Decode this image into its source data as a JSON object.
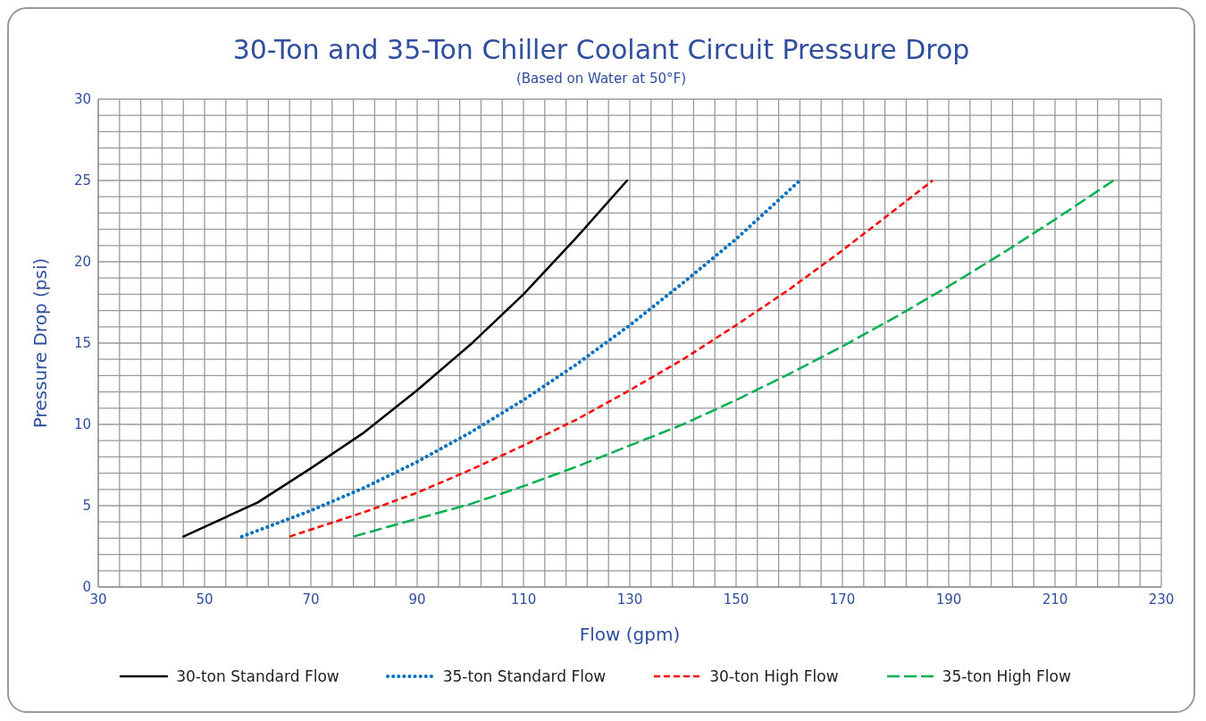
{
  "chart_data": {
    "type": "line",
    "title": "30-Ton and 35-Ton Chiller Coolant Circuit Pressure Drop",
    "subtitle": "(Based on Water at 50°F)",
    "xlabel": "Flow (gpm)",
    "ylabel": "Pressure Drop (psi)",
    "xlim": [
      30,
      230
    ],
    "xticks": [
      30,
      {
        "value": 34,
        "label": null
      },
      {
        "value": 38,
        "label": null
      },
      {
        "value": 42,
        "label": null
      },
      {
        "value": 46,
        "label": null
      },
      50,
      {
        "value": 54,
        "label": null
      },
      {
        "value": 58,
        "label": null
      },
      {
        "value": 62,
        "label": null
      },
      {
        "value": 66,
        "label": null
      },
      70,
      {
        "value": 74,
        "label": null
      },
      {
        "value": 78,
        "label": null
      },
      {
        "value": 82,
        "label": null
      },
      {
        "value": 86,
        "label": null
      },
      90,
      {
        "value": 94,
        "label": null
      },
      {
        "value": 98,
        "label": null
      },
      {
        "value": 102,
        "label": null
      },
      {
        "value": 106,
        "label": null
      },
      110,
      {
        "value": 114,
        "label": null
      },
      {
        "value": 118,
        "label": null
      },
      {
        "value": 122,
        "label": null
      },
      {
        "value": 126,
        "label": null
      },
      130,
      {
        "value": 134,
        "label": null
      },
      {
        "value": 138,
        "label": null
      },
      {
        "value": 142,
        "label": null
      },
      {
        "value": 146,
        "label": null
      },
      150,
      {
        "value": 154,
        "label": null
      },
      {
        "value": 158,
        "label": null
      },
      {
        "value": 162,
        "label": null
      },
      {
        "value": 166,
        "label": null
      },
      170,
      {
        "value": 174,
        "label": null
      },
      {
        "value": 178,
        "label": null
      },
      {
        "value": 182,
        "label": null
      },
      {
        "value": 186,
        "label": null
      },
      190,
      {
        "value": 194,
        "label": null
      },
      {
        "value": 198,
        "label": null
      },
      {
        "value": 202,
        "label": null
      },
      {
        "value": 206,
        "label": null
      },
      210,
      {
        "value": 214,
        "label": null
      },
      {
        "value": 218,
        "label": null
      },
      {
        "value": 222,
        "label": null
      },
      {
        "value": 226,
        "label": null
      },
      230
    ],
    "ylim": [
      0,
      30
    ],
    "yticks": [
      0,
      {
        "value": 1,
        "label": null
      },
      {
        "value": 2,
        "label": null
      },
      {
        "value": 3,
        "label": null
      },
      {
        "value": 4,
        "label": null
      },
      5,
      {
        "value": 6,
        "label": null
      },
      {
        "value": 7,
        "label": null
      },
      {
        "value": 8,
        "label": null
      },
      {
        "value": 9,
        "label": null
      },
      10,
      {
        "value": 11,
        "label": null
      },
      {
        "value": 12,
        "label": null
      },
      {
        "value": 13,
        "label": null
      },
      {
        "value": 14,
        "label": null
      },
      15,
      {
        "value": 16,
        "label": null
      },
      {
        "value": 17,
        "label": null
      },
      {
        "value": 18,
        "label": null
      },
      {
        "value": 19,
        "label": null
      },
      20,
      {
        "value": 21,
        "label": null
      },
      {
        "value": 22,
        "label": null
      },
      {
        "value": 23,
        "label": null
      },
      {
        "value": 24,
        "label": null
      },
      25,
      {
        "value": 26,
        "label": null
      },
      {
        "value": 27,
        "label": null
      },
      {
        "value": 28,
        "label": null
      },
      {
        "value": 29,
        "label": null
      },
      30
    ],
    "grid": true,
    "legend": "bottom",
    "series": [
      {
        "name": "30-ton Standard Flow",
        "color": "#000000",
        "line_style": "solid",
        "x": [
          46,
          60,
          70,
          80,
          90,
          100,
          110,
          120,
          129.5
        ],
        "values": [
          3.1,
          5.2,
          7.3,
          9.5,
          12.1,
          14.9,
          18,
          21.5,
          25
        ]
      },
      {
        "name": "35-ton Standard Flow",
        "color": "#0070c0",
        "line_style": "dotted",
        "x": [
          57,
          70,
          80,
          90,
          100,
          110,
          120,
          130,
          140,
          150,
          162
        ],
        "values": [
          3.1,
          4.7,
          6.1,
          7.7,
          9.5,
          11.5,
          13.7,
          16.1,
          18.7,
          21.4,
          25
        ]
      },
      {
        "name": "30-ton High Flow",
        "color": "#ff0000",
        "line_style": "dashed",
        "x": [
          66,
          80,
          90,
          100,
          110,
          120,
          130,
          140,
          150,
          160,
          170,
          187
        ],
        "values": [
          3.1,
          4.6,
          5.8,
          7.2,
          8.7,
          10.3,
          12.1,
          14,
          16.1,
          18.3,
          20.7,
          25
        ]
      },
      {
        "name": "35-ton High Flow",
        "color": "#00b050",
        "line_style": "longdash",
        "x": [
          78,
          90,
          100,
          110,
          120,
          130,
          140,
          150,
          160,
          170,
          180,
          190,
          200,
          210,
          221
        ],
        "values": [
          3.1,
          4.2,
          5.1,
          6.2,
          7.4,
          8.7,
          10,
          11.5,
          13.1,
          14.8,
          16.6,
          18.5,
          20.5,
          22.6,
          25
        ]
      }
    ]
  }
}
